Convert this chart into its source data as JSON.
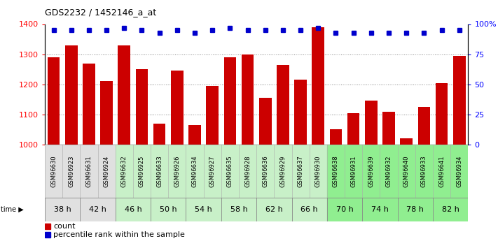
{
  "title": "GDS2232 / 1452146_a_at",
  "samples": [
    "GSM96630",
    "GSM96923",
    "GSM96631",
    "GSM96924",
    "GSM96632",
    "GSM96925",
    "GSM96633",
    "GSM96926",
    "GSM96634",
    "GSM96927",
    "GSM96635",
    "GSM96928",
    "GSM96636",
    "GSM96929",
    "GSM96637",
    "GSM96930",
    "GSM96638",
    "GSM96931",
    "GSM96639",
    "GSM96932",
    "GSM96640",
    "GSM96933",
    "GSM96641",
    "GSM96934"
  ],
  "counts": [
    1290,
    1330,
    1270,
    1210,
    1330,
    1250,
    1070,
    1245,
    1065,
    1195,
    1290,
    1300,
    1155,
    1265,
    1215,
    1390,
    1050,
    1105,
    1145,
    1110,
    1020,
    1125,
    1205,
    1295
  ],
  "percentile_ranks": [
    95,
    95,
    95,
    95,
    97,
    95,
    93,
    95,
    93,
    95,
    97,
    95,
    95,
    95,
    95,
    97,
    93,
    93,
    93,
    93,
    93,
    93,
    95,
    95
  ],
  "time_labels": [
    "38 h",
    "42 h",
    "46 h",
    "50 h",
    "54 h",
    "58 h",
    "62 h",
    "66 h",
    "70 h",
    "74 h",
    "78 h",
    "82 h"
  ],
  "col_colors": [
    "#e0e0e0",
    "#e0e0e0",
    "#e0e0e0",
    "#e0e0e0",
    "#c8f0c8",
    "#c8f0c8",
    "#c8f0c8",
    "#c8f0c8",
    "#c8f0c8",
    "#c8f0c8",
    "#c8f0c8",
    "#c8f0c8",
    "#c8f0c8",
    "#c8f0c8",
    "#c8f0c8",
    "#c8f0c8",
    "#90ee90",
    "#90ee90",
    "#90ee90",
    "#90ee90",
    "#90ee90",
    "#90ee90",
    "#90ee90",
    "#90ee90"
  ],
  "time_bg_colors": [
    "#e0e0e0",
    "#e0e0e0",
    "#c8f0c8",
    "#c8f0c8",
    "#c8f0c8",
    "#c8f0c8",
    "#c8f0c8",
    "#c8f0c8",
    "#90ee90",
    "#90ee90",
    "#90ee90",
    "#90ee90"
  ],
  "bar_color": "#cc0000",
  "dot_color": "#0000cc",
  "ylim_left": [
    1000,
    1400
  ],
  "ylim_right": [
    0,
    100
  ],
  "yticks_left": [
    1000,
    1100,
    1200,
    1300,
    1400
  ],
  "yticks_right": [
    0,
    25,
    50,
    75,
    100
  ],
  "ytick_labels_right": [
    "0",
    "25",
    "50",
    "75",
    "100%"
  ],
  "grid_color": "#888888",
  "legend_count_label": "count",
  "legend_pct_label": "percentile rank within the sample"
}
